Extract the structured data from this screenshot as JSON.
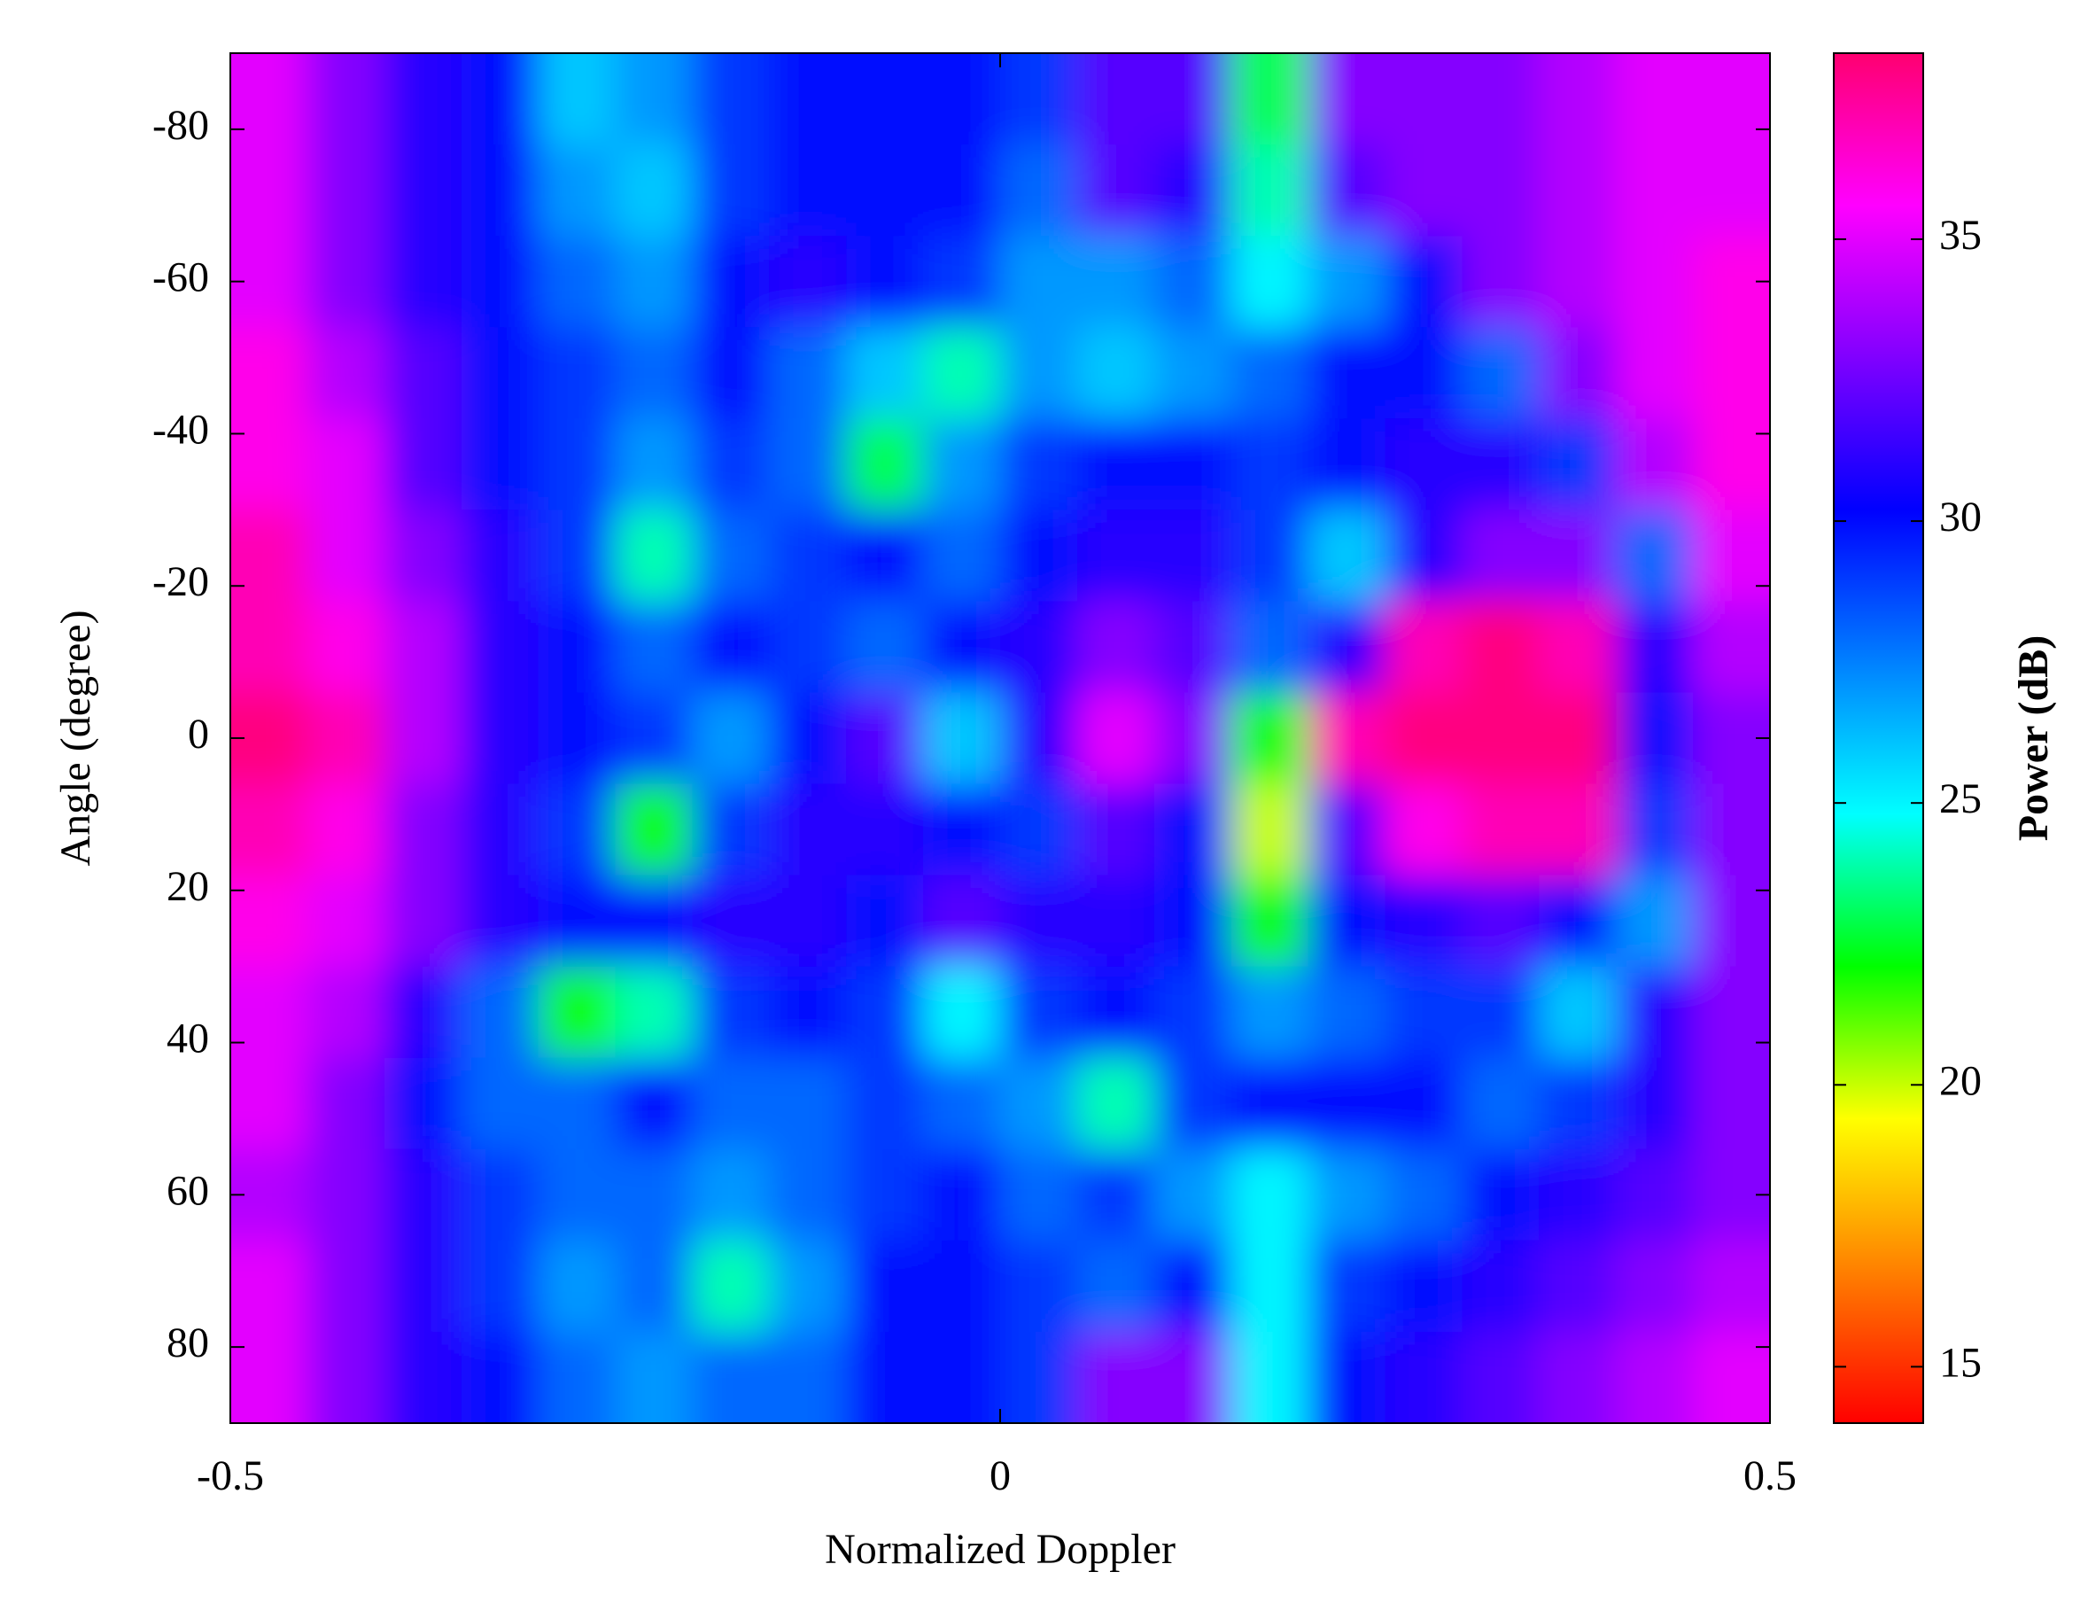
{
  "chart_data": {
    "type": "heatmap",
    "xlabel": "Normalized Doppler",
    "ylabel": "Angle (degree)",
    "colorbar_label": "Power (dB)",
    "xlim": [
      -0.5,
      0.5
    ],
    "xticks": [
      -0.5,
      0,
      0.5
    ],
    "ylim": [
      -90,
      90
    ],
    "yticks": [
      -80,
      -60,
      -40,
      -20,
      0,
      20,
      40,
      60,
      80
    ],
    "y_reversed": true,
    "clim": [
      14,
      38.3
    ],
    "cticks": [
      15,
      20,
      25,
      30,
      35
    ],
    "colormap": [
      "#ff0000",
      "#ff8000",
      "#ffff00",
      "#00ff00",
      "#00ffff",
      "#0080ff",
      "#0000ff",
      "#8000ff",
      "#ff00ff",
      "#ff0070"
    ],
    "x": [
      -0.475,
      -0.425,
      -0.375,
      -0.325,
      -0.275,
      -0.225,
      -0.175,
      -0.125,
      -0.075,
      -0.025,
      0.025,
      0.075,
      0.125,
      0.175,
      0.225,
      0.275,
      0.325,
      0.375,
      0.425,
      0.475
    ],
    "y": [
      -84,
      -72,
      -60,
      -48,
      -36,
      -24,
      -12,
      0,
      12,
      24,
      36,
      48,
      60,
      72,
      84
    ],
    "z": [
      [
        35,
        33,
        31,
        30,
        26,
        27,
        29,
        30,
        30,
        30,
        29,
        32,
        32,
        23,
        33,
        33,
        33,
        34,
        35,
        35
      ],
      [
        35,
        33,
        31,
        30,
        27,
        26,
        29,
        30,
        30,
        30,
        28,
        32,
        31,
        24,
        32,
        33,
        33,
        34,
        35,
        35
      ],
      [
        35,
        33,
        31,
        30,
        28,
        27,
        30,
        31,
        30,
        29,
        27,
        27,
        28,
        25,
        27,
        30,
        33,
        34,
        35,
        36
      ],
      [
        36,
        34,
        32,
        30,
        29,
        28,
        30,
        28,
        26,
        24,
        27,
        26,
        27,
        28,
        30,
        30,
        28,
        33,
        35,
        36
      ],
      [
        36,
        35,
        32,
        30,
        29,
        27,
        29,
        28,
        23,
        27,
        29,
        30,
        30,
        29,
        30,
        31,
        31,
        29,
        34,
        36
      ],
      [
        37,
        35,
        33,
        31,
        29,
        24,
        28,
        29,
        30,
        28,
        30,
        31,
        31,
        29,
        26,
        31,
        33,
        33,
        28,
        35
      ],
      [
        37,
        36,
        34,
        31,
        30,
        28,
        30,
        29,
        28,
        30,
        31,
        33,
        32,
        28,
        31,
        37,
        38,
        37,
        31,
        34
      ],
      [
        38,
        37,
        34,
        31,
        30,
        29,
        27,
        30,
        32,
        26,
        31,
        35,
        33,
        22,
        37,
        38,
        38,
        38,
        30,
        33
      ],
      [
        37,
        36,
        33,
        31,
        29,
        22,
        29,
        31,
        31,
        30,
        29,
        32,
        30,
        20,
        32,
        36,
        37,
        37,
        29,
        33
      ],
      [
        36,
        35,
        33,
        31,
        30,
        30,
        31,
        31,
        30,
        32,
        31,
        31,
        30,
        22,
        30,
        31,
        32,
        30,
        27,
        33
      ],
      [
        35,
        34,
        31,
        28,
        22,
        24,
        29,
        30,
        29,
        25,
        29,
        30,
        29,
        27,
        28,
        29,
        29,
        26,
        31,
        33
      ],
      [
        35,
        33,
        30,
        28,
        28,
        30,
        28,
        28,
        29,
        28,
        27,
        24,
        29,
        30,
        30,
        30,
        28,
        29,
        31,
        33
      ],
      [
        34,
        33,
        31,
        29,
        28,
        28,
        27,
        28,
        29,
        30,
        28,
        29,
        27,
        25,
        27,
        28,
        30,
        31,
        32,
        33
      ],
      [
        35,
        33,
        31,
        29,
        27,
        28,
        24,
        27,
        30,
        30,
        29,
        28,
        30,
        25,
        29,
        30,
        31,
        32,
        33,
        34
      ],
      [
        35,
        33,
        31,
        30,
        28,
        27,
        28,
        28,
        30,
        30,
        29,
        33,
        33,
        25,
        30,
        31,
        32,
        33,
        34,
        35
      ]
    ]
  }
}
